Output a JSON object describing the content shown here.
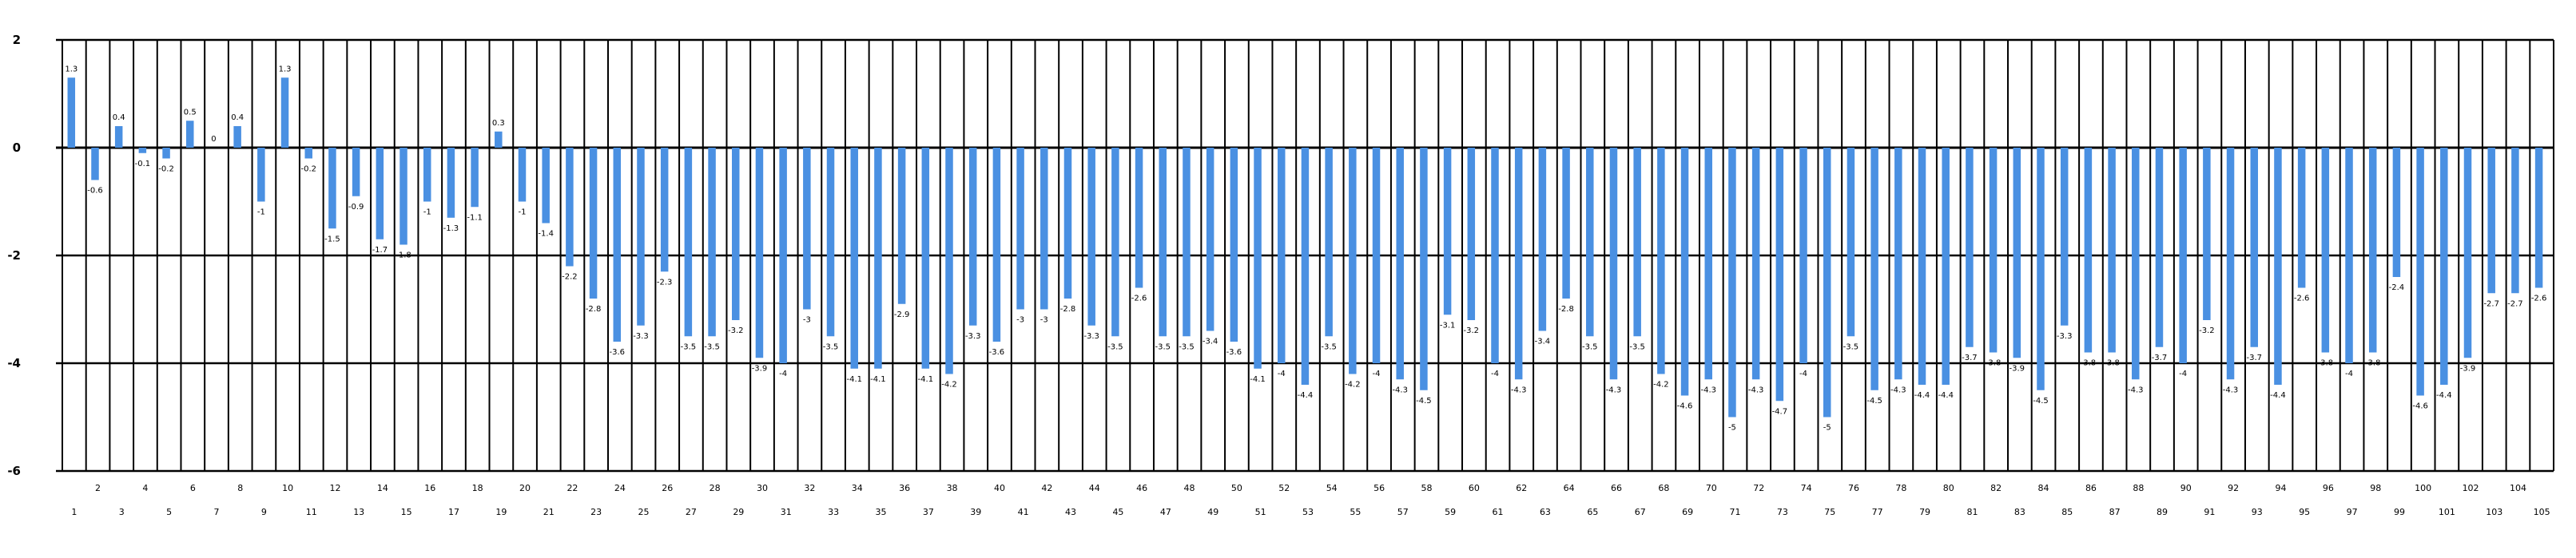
{
  "chart_data": {
    "type": "bar",
    "title": "",
    "xlabel": "",
    "ylabel": "",
    "ylim": [
      -6,
      2
    ],
    "yticks": [
      2,
      0,
      -2,
      -4,
      -6
    ],
    "ytick_labels": [
      "2",
      "0",
      "-2",
      "-4",
      "-6"
    ],
    "grid": "horizontal and vertical",
    "legend": "none",
    "categories": [
      "1",
      "2",
      "3",
      "4",
      "5",
      "6",
      "7",
      "8",
      "9",
      "10",
      "11",
      "12",
      "13",
      "14",
      "15",
      "16",
      "17",
      "18",
      "19",
      "20",
      "21",
      "22",
      "23",
      "24",
      "25",
      "26",
      "27",
      "28",
      "29",
      "30",
      "31",
      "32",
      "33",
      "34",
      "35",
      "36",
      "37",
      "38",
      "39",
      "40",
      "41",
      "42",
      "43",
      "44",
      "45",
      "46",
      "47",
      "48",
      "49",
      "50",
      "51",
      "52",
      "53",
      "54",
      "55",
      "56",
      "57",
      "58",
      "59",
      "60",
      "61",
      "62",
      "63",
      "64",
      "65",
      "66",
      "67",
      "68",
      "69",
      "70",
      "71",
      "72",
      "73",
      "74",
      "75",
      "76",
      "77",
      "78",
      "79",
      "80",
      "81",
      "82",
      "83",
      "84",
      "85",
      "86",
      "87",
      "88",
      "89",
      "90",
      "91",
      "92",
      "93",
      "94",
      "95",
      "96",
      "97",
      "98",
      "99",
      "100",
      "101",
      "102",
      "103",
      "104",
      "105"
    ],
    "values": [
      1.3,
      -0.6,
      0.4,
      -0.1,
      -0.2,
      0.5,
      0,
      0.4,
      -1.0,
      1.3,
      -0.2,
      -1.5,
      -0.9,
      -1.7,
      -1.8,
      -1.0,
      -1.3,
      -1.1,
      0.3,
      -1.0,
      -1.4,
      -2.2,
      -2.8,
      -3.6,
      -3.3,
      -2.3,
      -3.5,
      -3.5,
      -3.2,
      -3.9,
      -4.0,
      -3.0,
      -3.5,
      -4.1,
      -4.1,
      -2.9,
      -4.1,
      -4.2,
      -3.3,
      -3.6,
      -3.0,
      -3.0,
      -2.8,
      -3.3,
      -3.5,
      -2.6,
      -3.5,
      -3.5,
      -3.4,
      -3.6,
      -4.1,
      -4.0,
      -4.4,
      -3.5,
      -4.2,
      -4.0,
      -4.3,
      -4.5,
      -3.1,
      -3.2,
      -4.0,
      -4.3,
      -3.4,
      -2.8,
      -3.5,
      -4.3,
      -3.5,
      -4.2,
      -4.6,
      -4.3,
      -5.0,
      -4.3,
      -4.7,
      -4.0,
      -5.0,
      -3.5,
      -4.5,
      -4.3,
      -4.4,
      -4.4,
      -3.7,
      -3.8,
      -3.9,
      -4.5,
      -3.3,
      -3.8,
      -3.8,
      -4.3,
      -3.7,
      -4.0,
      -3.2,
      -4.3,
      -3.7,
      -4.4,
      -2.6,
      -3.8,
      -4.0,
      -3.8,
      -2.4,
      -4.6,
      -4.4,
      -3.9,
      -2.7,
      -2.7,
      -2.6
    ],
    "data_labels": [
      "1.3",
      "-0.6",
      "0.4",
      "-0.1",
      "-0.2",
      "0.5",
      "0",
      "0.4",
      "-1",
      "1.3",
      "-0.2",
      "-1.5",
      "-0.9",
      "-1.7",
      "-1.8",
      "-1",
      "-1.3",
      "-1.1",
      "0.3",
      "-1",
      "-1.4",
      "-2.2",
      "-2.8",
      "-3.6",
      "-3.3",
      "-2.3",
      "-3.5",
      "-3.5",
      "-3.2",
      "-3.9",
      "-4",
      "-3",
      "-3.5",
      "-4.1",
      "-4.1",
      "-2.9",
      "-4.1",
      "-4.2",
      "-3.3",
      "-3.6",
      "-3",
      "-3",
      "-2.8",
      "-3.3",
      "-3.5",
      "-2.6",
      "-3.5",
      "-3.5",
      "-3.4",
      "-3.6",
      "-4.1",
      "-4",
      "-4.4",
      "-3.5",
      "-4.2",
      "-4",
      "-4.3",
      "-4.5",
      "-3.1",
      "-3.2",
      "-4",
      "-4.3",
      "-3.4",
      "-2.8",
      "-3.5",
      "-4.3",
      "-3.5",
      "-4.2",
      "-4.6",
      "-4.3",
      "-5",
      "-4.3",
      "-4.7",
      "-4",
      "-5",
      "-3.5",
      "-4.5",
      "-4.3",
      "-4.4",
      "-4.4",
      "-3.7",
      "-3.8",
      "-3.9",
      "-4.5",
      "-3.3",
      "-3.8",
      "-3.8",
      "-4.3",
      "-3.7",
      "-4",
      "-3.2",
      "-4.3",
      "-3.7",
      "-4.4",
      "-2.6",
      "-3.8",
      "-4",
      "-3.8",
      "-2.4",
      "-4.6",
      "-4.4",
      "-3.9",
      "-2.7",
      "-2.7",
      "-2.6"
    ],
    "bar_color": "#4a90e2",
    "grid_color": "#000000"
  }
}
